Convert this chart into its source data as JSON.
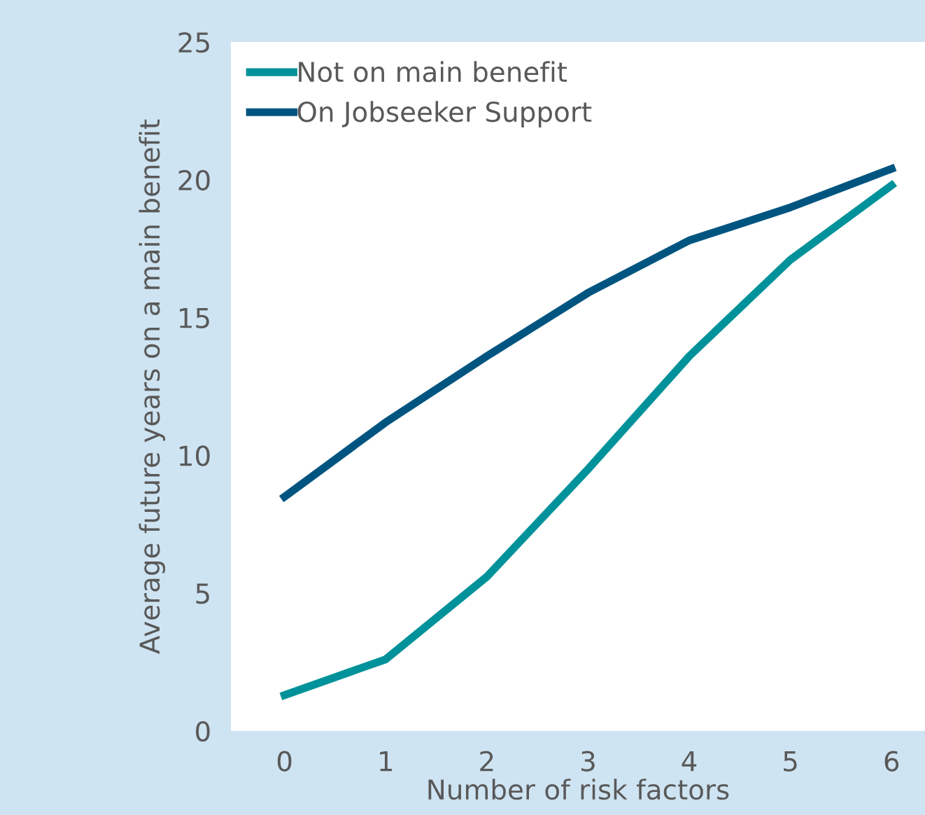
{
  "chart_data": {
    "type": "line",
    "xlabel": "Number of risk factors",
    "ylabel": "Average future years on a main benefit",
    "categories": [
      "0",
      "1",
      "2",
      "3",
      "4",
      "5",
      "6"
    ],
    "series": [
      {
        "name": "Not on main benefit",
        "color": "#00929a",
        "values": [
          1.3,
          2.6,
          5.6,
          9.5,
          13.6,
          17.1,
          19.8
        ]
      },
      {
        "name": "On Jobseeker Support",
        "color": "#005580",
        "values": [
          8.5,
          11.2,
          13.6,
          15.9,
          17.8,
          19.0,
          20.4
        ]
      }
    ],
    "ylim": [
      0,
      25
    ],
    "yticks": [
      0,
      5,
      10,
      15,
      20,
      25
    ],
    "grid": false,
    "legend": "top left",
    "marker": "none",
    "line_style": "solid"
  }
}
